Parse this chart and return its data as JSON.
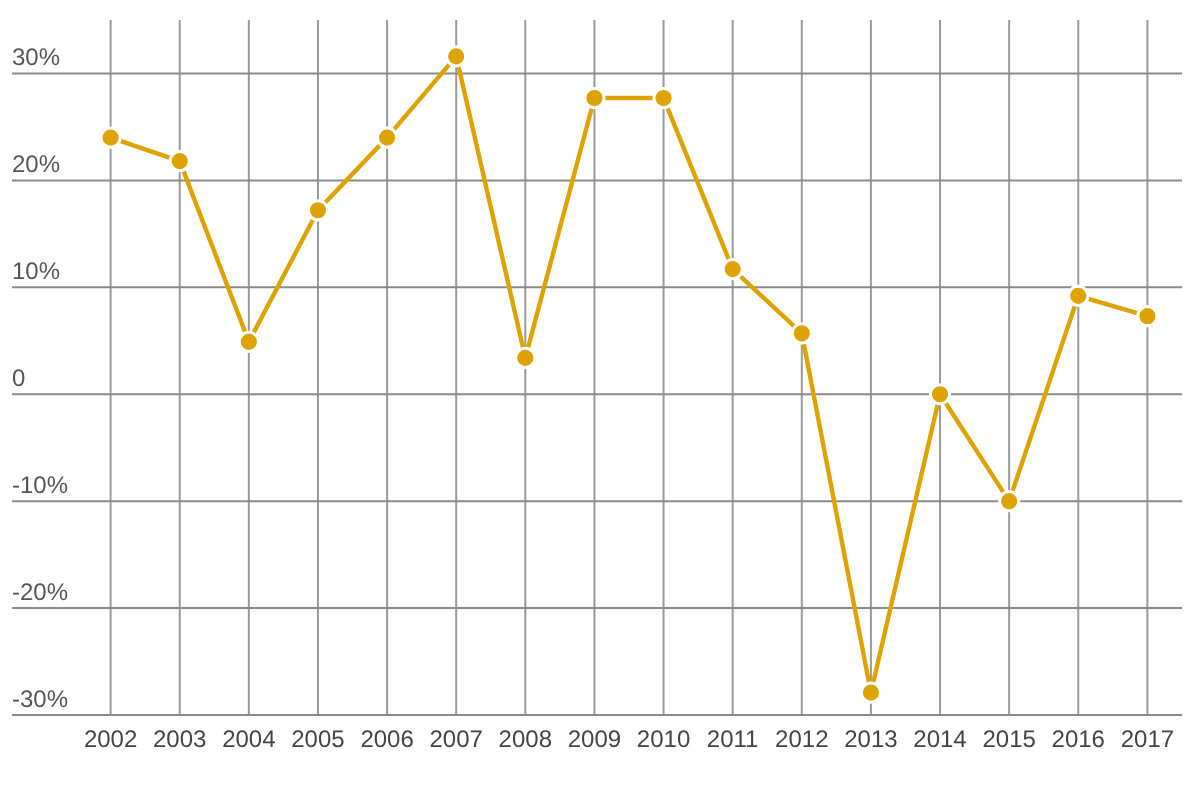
{
  "chart_data": {
    "type": "line",
    "categories": [
      "2002",
      "2003",
      "2004",
      "2005",
      "2006",
      "2007",
      "2008",
      "2009",
      "2010",
      "2011",
      "2012",
      "2013",
      "2014",
      "2015",
      "2016",
      "2017"
    ],
    "series": [
      {
        "color": "#dea300",
        "values": [
          24,
          21.8,
          4.9,
          17.2,
          24,
          31.6,
          3.4,
          27.7,
          27.7,
          11.7,
          5.7,
          -27.9,
          0,
          -10,
          9.2,
          7.3
        ]
      }
    ],
    "ylim": [
      -30,
      35
    ],
    "yticks": [
      {
        "value": 30,
        "label": "30%"
      },
      {
        "value": 20,
        "label": "20%"
      },
      {
        "value": 10,
        "label": "10%"
      },
      0,
      {
        "value": -10,
        "label": "-10%"
      },
      {
        "value": -20,
        "label": "-20%"
      },
      {
        "value": -30,
        "label": "-30%"
      }
    ],
    "grid": true,
    "marker": "circle",
    "line_style": "solid"
  }
}
